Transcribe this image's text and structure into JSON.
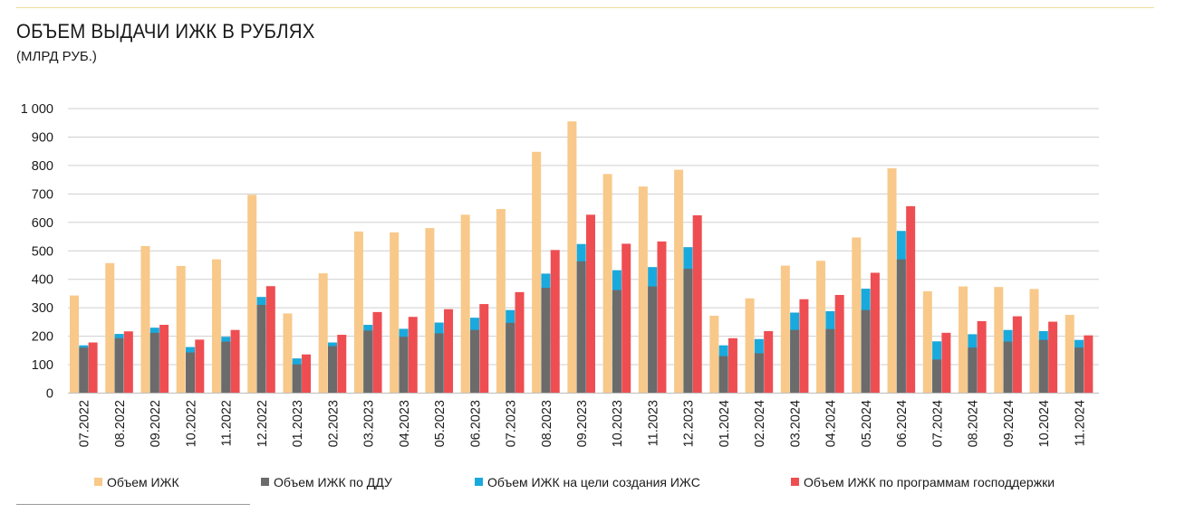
{
  "header": {
    "title": "ОБЪЕМ ВЫДАЧИ ИЖК В РУБЛЯХ",
    "subtitle": "(МЛРД РУБ.)"
  },
  "chart_data": {
    "type": "bar",
    "title": "ОБЪЕМ ВЫДАЧИ ИЖК В РУБЛЯХ",
    "subtitle": "(МЛРД РУБ.)",
    "xlabel": "",
    "ylabel": "",
    "ylim": [
      0,
      1000
    ],
    "yticks": [
      0,
      100,
      200,
      300,
      400,
      500,
      600,
      700,
      800,
      900,
      1000
    ],
    "ytick_labels": [
      "0",
      "100",
      "200",
      "300",
      "400",
      "500",
      "600",
      "700",
      "800",
      "900",
      "1 000"
    ],
    "grid": true,
    "legend_position": "bottom",
    "categories": [
      "07.2022",
      "08.2022",
      "09.2022",
      "10.2022",
      "11.2022",
      "12.2022",
      "01.2023",
      "02.2023",
      "03.2023",
      "04.2023",
      "05.2023",
      "06.2023",
      "07.2023",
      "08.2023",
      "09.2023",
      "10.2023",
      "11.2023",
      "12.2023",
      "01.2024",
      "02.2024",
      "03.2024",
      "04.2024",
      "05.2024",
      "06.2024",
      "07.2024",
      "08.2024",
      "09.2024",
      "10.2024",
      "11.2024"
    ],
    "series": [
      {
        "name": "Объем ИЖК",
        "color": "#f8c98a",
        "values": [
          343,
          457,
          517,
          447,
          470,
          697,
          280,
          421,
          568,
          565,
          580,
          627,
          647,
          848,
          955,
          770,
          726,
          785,
          272,
          333,
          448,
          465,
          547,
          790,
          358,
          375,
          373,
          366,
          275
        ]
      },
      {
        "name": "Объем ИЖК по ДДУ",
        "color": "#6b6b6b",
        "values": [
          160,
          193,
          212,
          143,
          181,
          310,
          101,
          165,
          220,
          198,
          210,
          222,
          247,
          370,
          463,
          362,
          375,
          437,
          130,
          140,
          222,
          225,
          292,
          470,
          118,
          160,
          181,
          187,
          160
        ]
      },
      {
        "name": "Объем ИЖК на цели создания ИЖС",
        "color": "#1aa9dc",
        "values": [
          168,
          208,
          230,
          162,
          198,
          338,
          122,
          178,
          240,
          226,
          248,
          265,
          292,
          420,
          524,
          432,
          443,
          513,
          168,
          190,
          283,
          288,
          367,
          570,
          182,
          207,
          222,
          218,
          187
        ]
      },
      {
        "name": "Объем ИЖК по программам господдержки",
        "color": "#ee4e52",
        "values": [
          178,
          217,
          240,
          188,
          222,
          376,
          136,
          205,
          285,
          268,
          295,
          313,
          355,
          503,
          627,
          525,
          533,
          625,
          193,
          218,
          330,
          345,
          423,
          657,
          212,
          253,
          270,
          251,
          203
        ]
      }
    ]
  }
}
